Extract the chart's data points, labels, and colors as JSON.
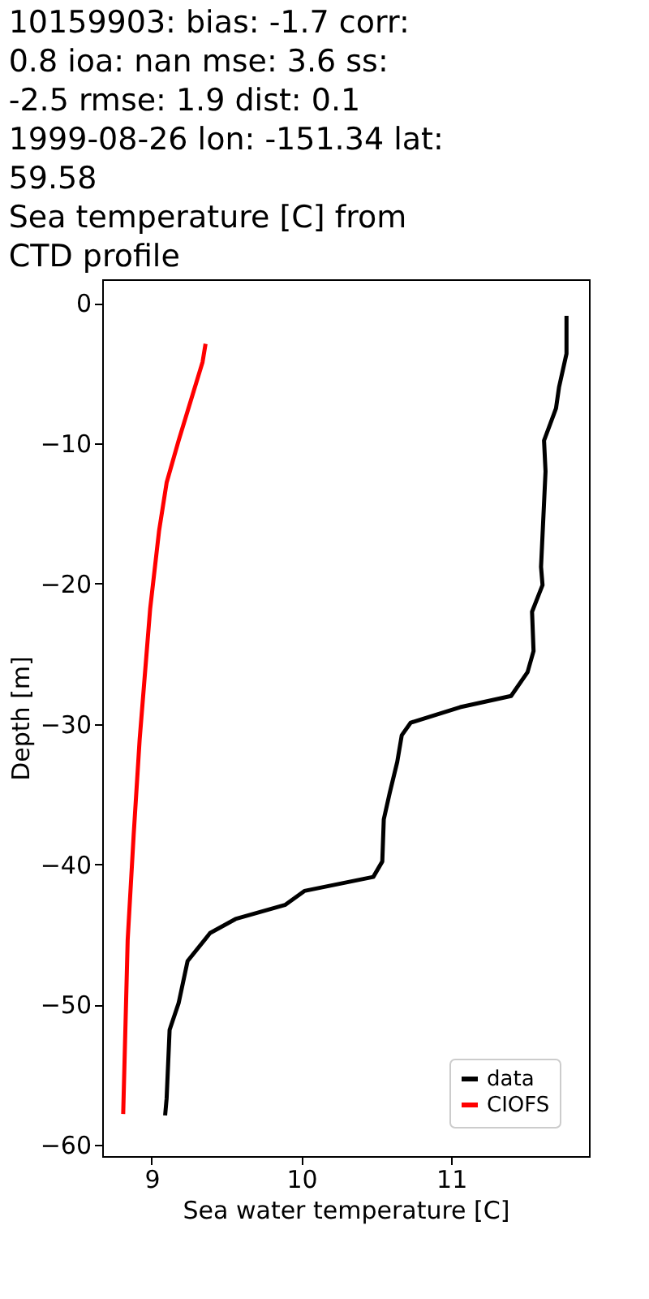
{
  "chart_data": {
    "type": "line",
    "title": "10159903: bias: -1.7  corr:\n0.8  ioa: nan  mse: 3.6  ss:\n-2.5  rmse: 1.9  dist: 0.1\n1999-08-26 lon: -151.34 lat:\n59.58\nSea temperature [C] from\nCTD profile",
    "xlabel": "Sea water temperature [C]",
    "ylabel": "Depth [m]",
    "series": [
      {
        "name": "data",
        "color": "#000000",
        "x": [
          11.77,
          11.77,
          11.72,
          11.7,
          11.62,
          11.63,
          11.6,
          11.61,
          11.54,
          11.55,
          11.51,
          11.4,
          11.06,
          10.73,
          10.67,
          10.64,
          10.59,
          10.55,
          10.54,
          10.48,
          10.02,
          9.89,
          9.56,
          9.39,
          9.24,
          9.18,
          9.12,
          9.1,
          9.09
        ],
        "values": [
          -0.9,
          -3.6,
          -6.0,
          -7.5,
          -9.8,
          -12.0,
          -18.8,
          -20.1,
          -22.0,
          -24.8,
          -26.3,
          -28.0,
          -28.8,
          -29.9,
          -30.8,
          -32.7,
          -34.9,
          -36.8,
          -39.8,
          -40.9,
          -41.9,
          -42.9,
          -43.9,
          -44.9,
          -46.9,
          -49.9,
          -51.8,
          -56.7,
          -57.9
        ]
      },
      {
        "name": "CIOFS",
        "color": "#ff0000",
        "x": [
          9.36,
          9.34,
          9.18,
          9.1,
          9.05,
          8.99,
          8.92,
          8.88,
          8.84,
          8.81
        ],
        "values": [
          -2.9,
          -4.2,
          -9.8,
          -12.8,
          -16.2,
          -21.8,
          -31.1,
          -37.9,
          -45.4,
          -57.8
        ]
      }
    ],
    "xlim": [
      8.67,
      11.92
    ],
    "ylim": [
      -60.8,
      1.7
    ],
    "xticks": [
      9,
      10,
      11
    ],
    "yticks": [
      0,
      -10,
      -20,
      -30,
      -40,
      -50,
      -60
    ],
    "grid": false,
    "legend": "bottom right",
    "line_style": "solid",
    "marker": "none"
  }
}
